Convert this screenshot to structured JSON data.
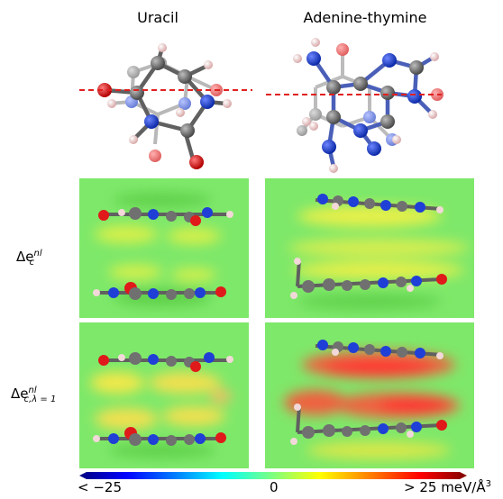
{
  "titles": {
    "left": "Uracil",
    "right": "Adenine-thymine"
  },
  "row_labels": {
    "top": {
      "delta": "Δe",
      "sup": "nl",
      "sub": "c"
    },
    "bottom": {
      "delta": "Δe",
      "sup": "nl",
      "sub": "c,λ = 1"
    }
  },
  "colorbar": {
    "min_label": "< −25",
    "mid_label": "0",
    "max_label": "> 25 meV/Å",
    "max_label_sup": "3",
    "colors": [
      "#00007f",
      "#0000ff",
      "#007fff",
      "#00ffff",
      "#7fff7f",
      "#ffff00",
      "#ff7f00",
      "#ff0000",
      "#7f0000"
    ]
  },
  "colors": {
    "carbon": "#707070",
    "nitrogen": "#1f3fd6",
    "oxygen": "#e01a1a",
    "hydrogen": "#f2d8d8",
    "cut_line": "#e02020",
    "panel_bg": "#7ee86a"
  }
}
